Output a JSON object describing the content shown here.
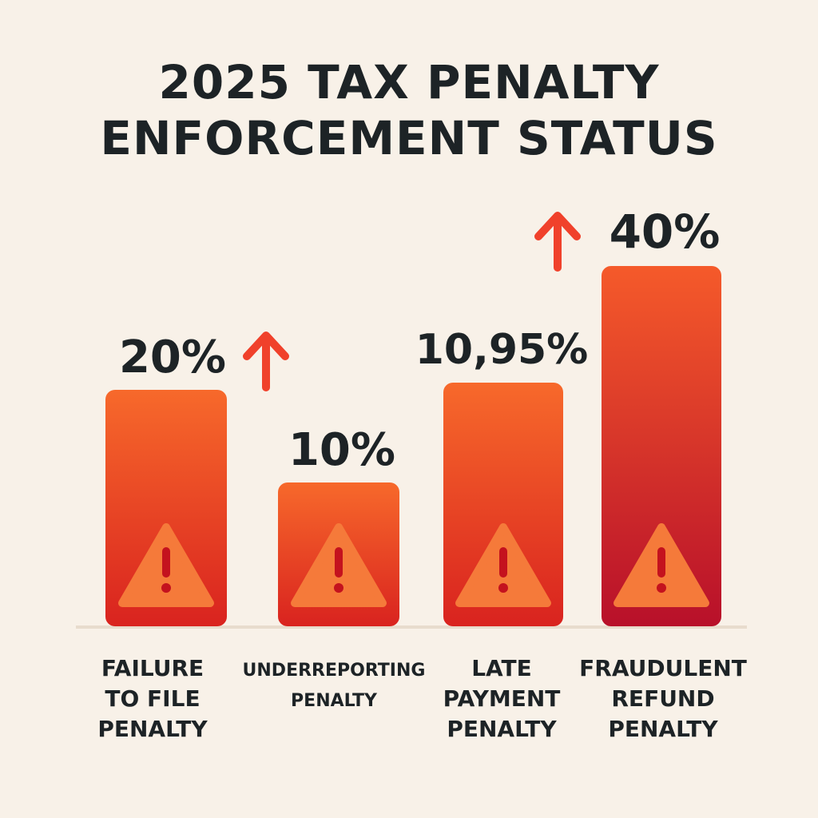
{
  "chart_data": {
    "type": "bar",
    "title": "2025 TAX PENALTY ENFORCEMENT STATUS",
    "title_lines": [
      "2025 TAX PENALTY",
      "ENFORCEMENT STATUS"
    ],
    "categories": [
      "FAILURE TO FILE PENALTY",
      "UNDERREPORTING PENALTY",
      "LATE PAYMENT PENALTY",
      "FRAUDULENT REFUND PENALTY"
    ],
    "category_lines": [
      [
        "FAILURE",
        "TO FILE",
        "PENALTY"
      ],
      [
        "UNDERREPORTING",
        "PENALTY"
      ],
      [
        "LATE",
        "PAYMENT",
        "PENALTY"
      ],
      [
        "FRAUDULENT",
        "REFUND",
        "PENALTY"
      ]
    ],
    "values": [
      20,
      10,
      10.95,
      40
    ],
    "value_labels": [
      "20%",
      "10%",
      "10,95%",
      "40%"
    ],
    "trend_up_after": [
      "FAILURE TO FILE PENALTY",
      "LATE PAYMENT PENALTY"
    ],
    "icons": [
      "warning-triangle-icon",
      "warning-triangle-icon",
      "warning-triangle-icon",
      "warning-triangle-icon"
    ],
    "xlabel": "",
    "ylabel": "",
    "grid": false,
    "legend": "none",
    "colors": {
      "bar_top": "#f7692b",
      "bar_bottom": "#d9231f",
      "bar_bottom_dark": "#b8102a",
      "arrow": "#f0412b",
      "warning_fill": "#f57a3a",
      "warning_mark": "#c4121e",
      "text": "#1d2326",
      "background": "#f8f1e8"
    }
  }
}
